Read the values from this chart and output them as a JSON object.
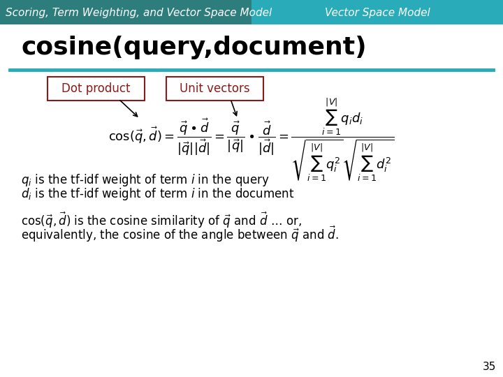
{
  "header_left_text": "Scoring, Term Weighting, and Vector Space Model",
  "header_right_text": "Vector Space Model",
  "header_left_color": "#2e7d7d",
  "header_right_color": "#29abb9",
  "header_text_color": "#ffffff",
  "title_text": "cosine(query,document)",
  "title_color": "#000000",
  "divider_color": "#29abb9",
  "box_color": "#8b1a1a",
  "dot_product_label": "Dot product",
  "unit_vectors_label": "Unit vectors",
  "formula": "\\cos(\\vec{q},\\vec{d}) = \\frac{\\vec{q}\\bullet\\vec{d}}{|\\vec{q}||\\vec{d}|} = \\frac{\\vec{q}}{|\\vec{q}|}\\bullet\\frac{\\vec{d}}{|\\vec{d}|} = \\frac{\\sum_{i=1}^{|V|}q_i d_i}{\\sqrt{\\sum_{i=1}^{|V|}q_i^2}\\sqrt{\\sum_{i=1}^{|V|}d_i^2}}",
  "line1": "$q_i$ is the tf-idf weight of term $i$ in the query",
  "line2": "$d_i$ is the tf-idf weight of term $i$ in the document",
  "line3": "$\\cos(\\vec{q},\\vec{d})$ is the cosine similarity of $\\vec{q}$ and $\\vec{d}$ $\\ldots$ or,",
  "line4": "equivalently, the cosine of the angle between $\\vec{q}$ and $\\vec{d}$.",
  "page_number": "35",
  "bg_color": "#ffffff"
}
